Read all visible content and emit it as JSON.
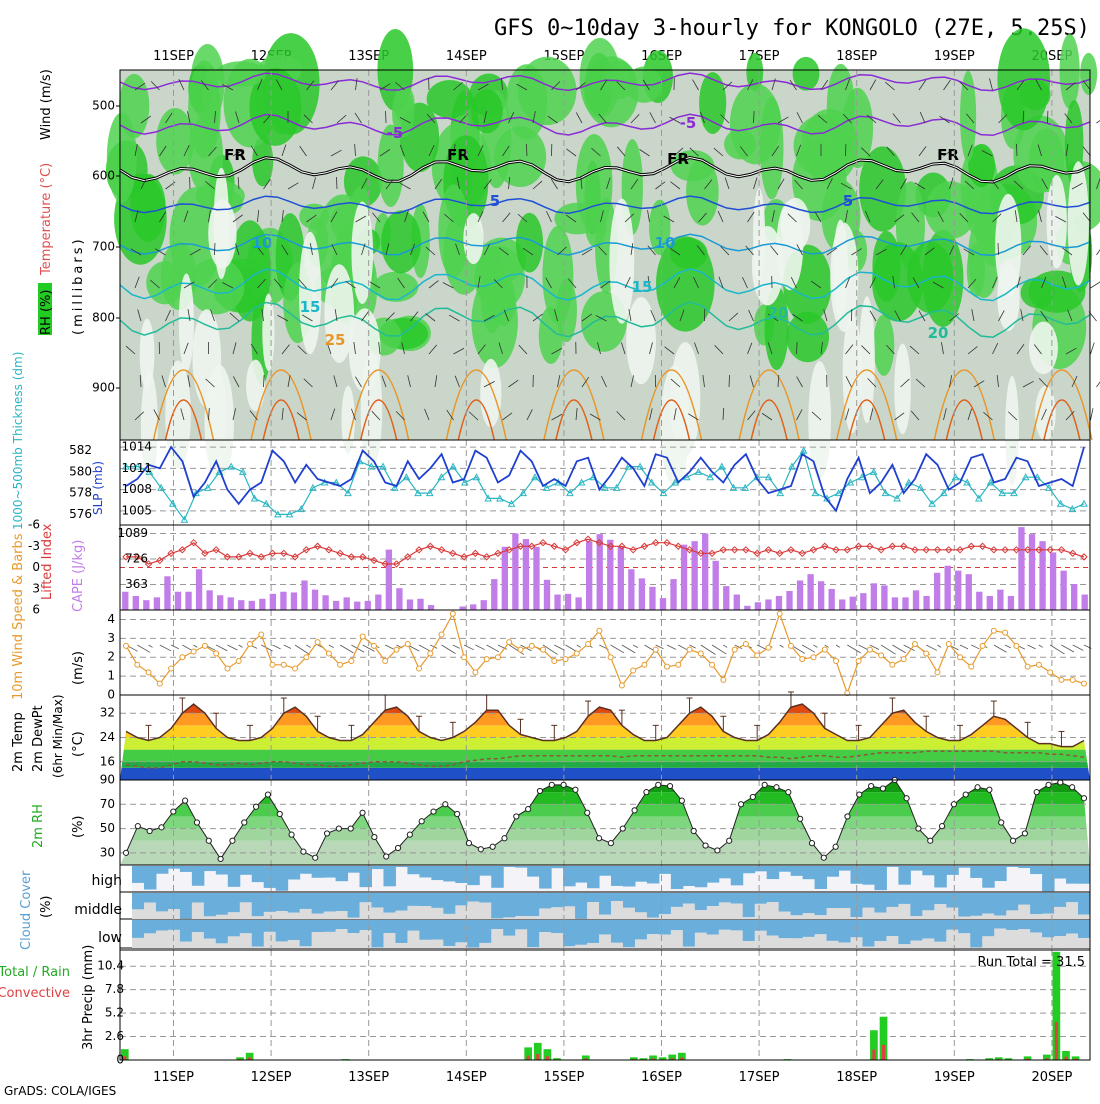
{
  "title": "GFS 0~10day 3-hourly for KONGOLO (27E, 5.25S)",
  "credit": "GrADS: COLA/IGES",
  "date_labels": [
    "11SEP",
    "12SEP",
    "13SEP",
    "14SEP",
    "15SEP",
    "16SEP",
    "17SEP",
    "18SEP",
    "19SEP",
    "20SEP"
  ],
  "colors": {
    "rh_green": "#22cc22",
    "rh_light": "#a9c9a9",
    "temp_purple": "#8a2bd6",
    "temp_blue": "#1f4fd6",
    "temp_cyan": "#1ab6c9",
    "temp_orange": "#e8962a",
    "slp_line": "#1f3fcf",
    "thickness_line": "#2bb6c2",
    "lifted_index": "#d83a3a",
    "cape_bar": "#c27ee8",
    "wind_speed": "#e79a2c",
    "cloud_blue": "#6aaedb",
    "precip_total": "#22cc22",
    "precip_conv": "#e04040"
  },
  "panels": {
    "upper": {
      "label_rh": "RH (%)",
      "label_temp": "Temperature (°C)",
      "label_wind": "Wind (m/s)",
      "label_units": "(millibars)",
      "yticks": [
        "500",
        "600",
        "700",
        "800",
        "900"
      ],
      "contour_labels": [
        "-5",
        "-5",
        "FR",
        "FR",
        "FR",
        "FR",
        "5",
        "5",
        "10",
        "10",
        "15",
        "15",
        "20",
        "20",
        "25"
      ]
    },
    "slp": {
      "label_thickness": "1000~500mb Thickness (dm)",
      "label_slp": "SLP (mb)",
      "left_ticks": [
        "582",
        "580",
        "578",
        "576"
      ],
      "right_ticks": [
        "1014",
        "1011",
        "1008",
        "1005"
      ]
    },
    "cape": {
      "label_li": "Lifted Index",
      "label_cape": "CAPE (J/kg)",
      "left_ticks": [
        "-6",
        "-3",
        "0",
        "3",
        "6"
      ],
      "right_ticks": [
        "1089",
        "726",
        "363"
      ]
    },
    "wind": {
      "label": "10m Wind Speed & Barbs",
      "units": "(m/s)",
      "yticks": [
        "4",
        "3",
        "2",
        "1",
        "0"
      ]
    },
    "temp": {
      "label1": "2m Temp",
      "label2": "2m DewPt",
      "label3": "(6hr Min/Max)",
      "units": "(°C)",
      "yticks": [
        "32",
        "24",
        "16"
      ]
    },
    "rh": {
      "label": "2m RH",
      "units": "(%)",
      "yticks": [
        "90",
        "70",
        "50",
        "30"
      ]
    },
    "cloud": {
      "label": "Cloud Cover",
      "units": "(%)",
      "levels": [
        "high",
        "middle",
        "low"
      ]
    },
    "precip": {
      "label1": "Total / Rain",
      "label2": "Convective",
      "label3": "3hr Precip (mm)",
      "yticks": [
        "10.4",
        "7.8",
        "5.2",
        "2.6",
        "0"
      ],
      "run_total": "Run Total = 31.5"
    }
  },
  "chart_data": [
    {
      "type": "line",
      "name": "slp",
      "ylabel": "SLP (mb)",
      "ylim": [
        1003,
        1015
      ],
      "values": [
        1008.5,
        1009.5,
        1011.5,
        1011,
        1014,
        1012,
        1007,
        1009,
        1012,
        1008,
        1006,
        1008,
        1009,
        1013.5,
        1012,
        1009,
        1011.5,
        1009.5,
        1009,
        1008.5,
        1009.5,
        1013.5,
        1012,
        1009,
        1008.5,
        1012,
        1009.5,
        1011,
        1013,
        1009,
        1009.5,
        1013.5,
        1012.5,
        1009,
        1010,
        1013.5,
        1012,
        1008.5,
        1009.5,
        1008.5,
        1012,
        1012.5,
        1008,
        1010,
        1012.5,
        1011,
        1008.5,
        1013,
        1012.5,
        1009,
        1010.5,
        1012.5,
        1010.5,
        1009,
        1011.5,
        1013,
        1009.5,
        1007.5,
        1008,
        1008.5,
        1013,
        1012,
        1007,
        1005,
        1009.5,
        1012.5,
        1007.5,
        1009,
        1011.5,
        1007.5,
        1009.5,
        1013,
        1011.5,
        1008,
        1009,
        1012.5,
        1013,
        1009,
        1009.5,
        1012.5,
        1012,
        1008.5,
        1009,
        1009.5,
        1008.5,
        1014
      ]
    },
    {
      "type": "line",
      "name": "thickness",
      "ylabel": "1000~500mb Thickness (dm)",
      "ylim": [
        575,
        583
      ],
      "values": [
        580.5,
        580.5,
        580,
        578.5,
        577,
        575.5,
        578,
        578.5,
        580,
        580.5,
        580,
        577.5,
        577,
        576,
        576,
        576.5,
        578.5,
        579,
        579,
        578,
        581,
        580.5,
        580.5,
        578.5,
        579.5,
        578,
        578,
        579.5,
        580.5,
        579,
        579.5,
        577.5,
        577.5,
        577,
        578,
        579.5,
        578.5,
        579,
        578,
        579,
        579.5,
        578.5,
        578.5,
        580.5,
        580.5,
        579,
        578,
        579,
        579.5,
        580,
        579.5,
        580.5,
        578.5,
        578.5,
        579.5,
        579.5,
        578,
        580.5,
        582,
        578,
        577.5,
        578,
        579,
        579.5,
        580,
        578,
        577.5,
        579,
        578.5,
        577,
        578,
        579.5,
        579,
        577.5,
        579,
        578,
        578,
        579.5,
        579.5,
        578.5,
        577,
        576.5,
        577
      ]
    },
    {
      "type": "line",
      "name": "lifted_index",
      "ylabel": "Lifted Index",
      "ylim": [
        6,
        -6
      ],
      "values": [
        -1.5,
        -1.5,
        -0.5,
        -1,
        -2,
        -2.5,
        -3.5,
        -2,
        -2.5,
        -1.5,
        -1.5,
        -2,
        -1.5,
        -2,
        -2,
        -1.5,
        -2.5,
        -3,
        -2.5,
        -2,
        -1.5,
        -1.5,
        -1,
        -0.5,
        -0.5,
        -1.5,
        -2.5,
        -3,
        -2.5,
        -2,
        -1.5,
        -2,
        -1.5,
        -2,
        -2.5,
        -3,
        -3,
        -3.5,
        -3,
        -2.5,
        -3.5,
        -4,
        -3.5,
        -3,
        -3,
        -2.5,
        -3,
        -3.5,
        -3.5,
        -3,
        -2.5,
        -2,
        -2,
        -2.5,
        -2.5,
        -2.5,
        -2,
        -2.5,
        -2,
        -2.5,
        -2,
        -2.5,
        -3,
        -2.5,
        -2.5,
        -3,
        -3,
        -2.5,
        -3,
        -3,
        -2.5,
        -2.5,
        -2.5,
        -2.5,
        -2.5,
        -3,
        -3,
        -2.5,
        -2.5,
        -2.5,
        -2.5,
        -2.5,
        -2.5,
        -2.5,
        -2,
        -1.5
      ]
    },
    {
      "type": "bar",
      "name": "cape",
      "ylabel": "CAPE (J/kg)",
      "ylim": [
        0,
        1210
      ],
      "values": [
        260,
        200,
        140,
        180,
        480,
        260,
        260,
        580,
        280,
        210,
        180,
        140,
        130,
        160,
        230,
        260,
        250,
        420,
        290,
        210,
        130,
        180,
        120,
        130,
        220,
        860,
        310,
        150,
        160,
        70,
        0,
        0,
        50,
        80,
        140,
        440,
        900,
        1090,
        1010,
        900,
        430,
        220,
        230,
        180,
        980,
        1080,
        1000,
        900,
        580,
        450,
        330,
        170,
        440,
        930,
        980,
        1090,
        700,
        340,
        220,
        60,
        110,
        150,
        200,
        270,
        420,
        510,
        410,
        300,
        150,
        190,
        240,
        380,
        350,
        180,
        180,
        280,
        200,
        530,
        630,
        560,
        510,
        260,
        200,
        290,
        200,
        1180,
        1080,
        980,
        820,
        560,
        370,
        220
      ]
    },
    {
      "type": "line",
      "name": "wind_speed_10m",
      "ylabel": "10m Wind Speed (m/s)",
      "ylim": [
        0,
        4.5
      ],
      "values": [
        2.6,
        1.6,
        1.2,
        0.6,
        1.4,
        2,
        2.3,
        2.6,
        2.2,
        1.4,
        1.8,
        2.7,
        3.2,
        1.6,
        1.6,
        1.4,
        2,
        2.8,
        2.2,
        1.6,
        1.8,
        3.1,
        2.6,
        1.8,
        2.4,
        2.7,
        1.4,
        2.2,
        3.2,
        4.3,
        2,
        1.2,
        1.9,
        2,
        2.8,
        2.4,
        2.6,
        2.4,
        1.8,
        1.9,
        2.2,
        2.7,
        3.4,
        2,
        0.5,
        1.3,
        1.6,
        2.4,
        1.5,
        1.6,
        2.4,
        2.2,
        1.6,
        0.8,
        2.4,
        2.7,
        2.1,
        2.5,
        4.3,
        2.6,
        1.9,
        2,
        2.4,
        1.8,
        0.1,
        1.8,
        2.4,
        2.1,
        1.6,
        1.9,
        2.7,
        2.2,
        1.2,
        2.7,
        2,
        1.5,
        2.6,
        3.4,
        3.3,
        2.6,
        1.5,
        1.6,
        1.2,
        0.8,
        0.8,
        0.6
      ]
    },
    {
      "type": "area",
      "name": "temp_2m",
      "ylabel": "2m Temp (°C)",
      "ylim": [
        10,
        38
      ],
      "values": [
        26,
        24,
        23,
        24,
        27,
        32,
        35,
        32,
        27,
        24,
        23,
        23,
        24,
        27,
        32,
        34,
        31,
        26,
        24,
        23,
        23,
        25,
        29,
        33,
        34,
        31,
        26,
        24,
        23,
        24,
        26,
        29,
        33,
        33,
        28,
        25,
        24,
        23,
        23,
        24,
        26,
        31,
        34,
        33,
        28,
        25,
        23,
        23,
        24,
        28,
        32,
        34,
        31,
        26,
        24,
        23,
        23,
        25,
        29,
        34,
        35,
        32,
        27,
        25,
        23,
        23,
        24,
        28,
        32,
        33,
        29,
        26,
        24,
        23,
        23,
        25,
        28,
        31,
        30,
        27,
        24,
        22,
        22,
        21,
        21,
        23
      ]
    },
    {
      "type": "line",
      "name": "dewpoint_2m",
      "ylabel": "2m DewPt (°C)",
      "ylim": [
        10,
        38
      ],
      "values": [
        15,
        14.5,
        14,
        14,
        15,
        16,
        16,
        15.5,
        15,
        15,
        15.5,
        15,
        15.5,
        16,
        16,
        15.5,
        15,
        15,
        14.5,
        14.5,
        15,
        15.5,
        16,
        16,
        16,
        15.5,
        15,
        14.5,
        14.5,
        15,
        16,
        16.5,
        17,
        17,
        17.5,
        18,
        18,
        18,
        18,
        18,
        18,
        18,
        18,
        18,
        17.5,
        18,
        18,
        18,
        18,
        18,
        18,
        18,
        18,
        18,
        18,
        18,
        18,
        17.5,
        17.5,
        17,
        17.5,
        18,
        18,
        17.5,
        17.5,
        18,
        18.5,
        19,
        19,
        19,
        19,
        19.5,
        19.5,
        19.5,
        19.5,
        19.5,
        19.5,
        19.5,
        19,
        19,
        19,
        19,
        18.5,
        18.5,
        18,
        17.5
      ]
    },
    {
      "type": "area",
      "name": "rh_2m",
      "ylabel": "2m RH (%)",
      "ylim": [
        20,
        90
      ],
      "values": [
        30,
        52,
        48,
        51,
        64,
        73,
        55,
        40,
        25,
        40,
        55,
        68,
        78,
        62,
        45,
        31,
        26,
        46,
        50,
        50,
        63,
        43,
        27,
        34,
        45,
        56,
        64,
        70,
        62,
        38,
        33,
        35,
        42,
        60,
        66,
        81,
        86,
        86,
        82,
        63,
        42,
        38,
        50,
        65,
        80,
        86,
        85,
        73,
        48,
        36,
        32,
        40,
        70,
        76,
        86,
        84,
        80,
        58,
        38,
        26,
        35,
        60,
        78,
        85,
        83,
        90,
        75,
        50,
        40,
        52,
        70,
        78,
        84,
        82,
        55,
        40,
        46,
        80,
        86,
        88,
        84,
        75
      ]
    },
    {
      "type": "bar",
      "name": "precip_3hr_total",
      "ylabel": "3hr Precip (mm)",
      "ylim": [
        0,
        12.2
      ],
      "values": [
        1.2,
        0,
        0,
        0,
        0,
        0,
        0,
        0,
        0,
        0,
        0,
        0,
        0.3,
        0.8,
        0,
        0,
        0,
        0,
        0,
        0,
        0,
        0,
        0,
        0.1,
        0,
        0,
        0,
        0,
        0,
        0,
        0,
        0,
        0,
        0,
        0,
        0,
        0,
        0,
        0,
        0,
        0,
        0,
        1.4,
        1.9,
        1.2,
        0.2,
        0,
        0,
        0.5,
        0,
        0,
        0,
        0,
        0.3,
        0.2,
        0.5,
        0.3,
        0.6,
        0.8,
        0,
        0,
        0,
        0,
        0,
        0,
        0,
        0,
        0,
        0,
        0.1,
        0,
        0,
        0,
        0,
        0,
        0,
        0,
        0,
        3.3,
        4.8,
        0,
        0,
        0,
        0,
        0,
        0,
        0,
        0,
        0.1,
        0,
        0.2,
        0.3,
        0.2,
        0,
        0.4,
        0,
        0.6,
        12,
        1,
        0.4,
        0
      ]
    }
  ]
}
